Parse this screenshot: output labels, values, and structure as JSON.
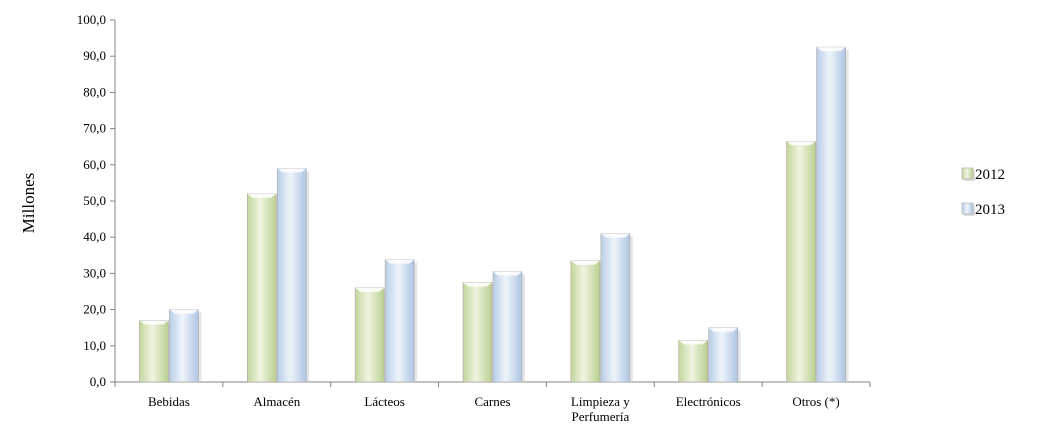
{
  "chart_data": {
    "type": "bar",
    "title": "",
    "xlabel": "",
    "ylabel": "Millones",
    "ylim": [
      0,
      100
    ],
    "ytick_step": 10,
    "ytick_labels": [
      "0,0",
      "10,0",
      "20,0",
      "30,0",
      "40,0",
      "50,0",
      "60,0",
      "70,0",
      "80,0",
      "90,0",
      "100,0"
    ],
    "categories": [
      [
        "Bebidas"
      ],
      [
        "Almacén"
      ],
      [
        "Lácteos"
      ],
      [
        "Carnes"
      ],
      [
        "Limpieza y",
        "Perfumería"
      ],
      [
        "Electrónicos"
      ],
      [
        "Otros (*)"
      ]
    ],
    "series": [
      {
        "name": "2012",
        "color": "#d8e6bd",
        "values": [
          17.0,
          52.0,
          26.0,
          27.5,
          33.5,
          11.5,
          66.5
        ]
      },
      {
        "name": "2013",
        "color": "#d3e1f1",
        "values": [
          20.0,
          59.0,
          33.8,
          30.5,
          41.0,
          15.0,
          92.5
        ]
      }
    ],
    "grid": false,
    "legend_position": "right"
  }
}
